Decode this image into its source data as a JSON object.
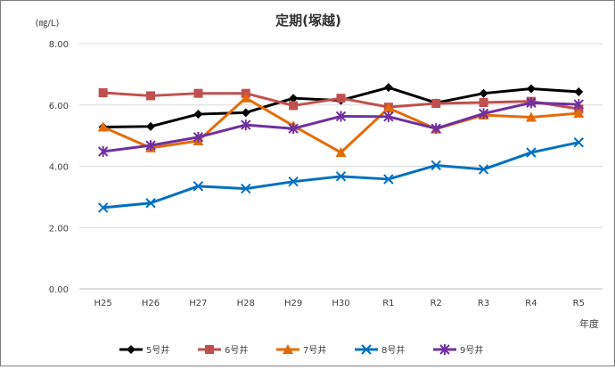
{
  "chart_data": {
    "type": "line",
    "title": "定期(塚越)",
    "ylabel": "(㎎/L)",
    "xlabel": "年度",
    "ylim": [
      0,
      8
    ],
    "yticks": [
      "0.00",
      "2.00",
      "4.00",
      "6.00",
      "8.00"
    ],
    "categories": [
      "H25",
      "H26",
      "H27",
      "H28",
      "H29",
      "H30",
      "R1",
      "R2",
      "R3",
      "R4",
      "R5"
    ],
    "grid": true,
    "legend": "bottom",
    "series": [
      {
        "name": "5号井",
        "color": "#000000",
        "marker": "diamond",
        "values": [
          5.28,
          5.3,
          5.7,
          5.75,
          6.22,
          6.15,
          6.57,
          6.07,
          6.38,
          6.53,
          6.43
        ]
      },
      {
        "name": "6号井",
        "color": "#c0504d",
        "marker": "square",
        "values": [
          6.4,
          6.3,
          6.38,
          6.38,
          5.98,
          6.22,
          5.93,
          6.05,
          6.08,
          6.12,
          5.87
        ]
      },
      {
        "name": "7号井",
        "color": "#e36c09",
        "marker": "triangle",
        "values": [
          5.28,
          4.6,
          4.83,
          6.23,
          5.32,
          4.45,
          5.9,
          5.22,
          5.67,
          5.6,
          5.73
        ]
      },
      {
        "name": "8号井",
        "color": "#0070c0",
        "marker": "x",
        "values": [
          2.65,
          2.8,
          3.35,
          3.27,
          3.5,
          3.67,
          3.58,
          4.03,
          3.9,
          4.45,
          4.78
        ]
      },
      {
        "name": "9号井",
        "color": "#7030a0",
        "marker": "star",
        "values": [
          4.48,
          4.68,
          4.95,
          5.35,
          5.23,
          5.63,
          5.62,
          5.23,
          5.72,
          6.07,
          6.02
        ]
      }
    ]
  }
}
